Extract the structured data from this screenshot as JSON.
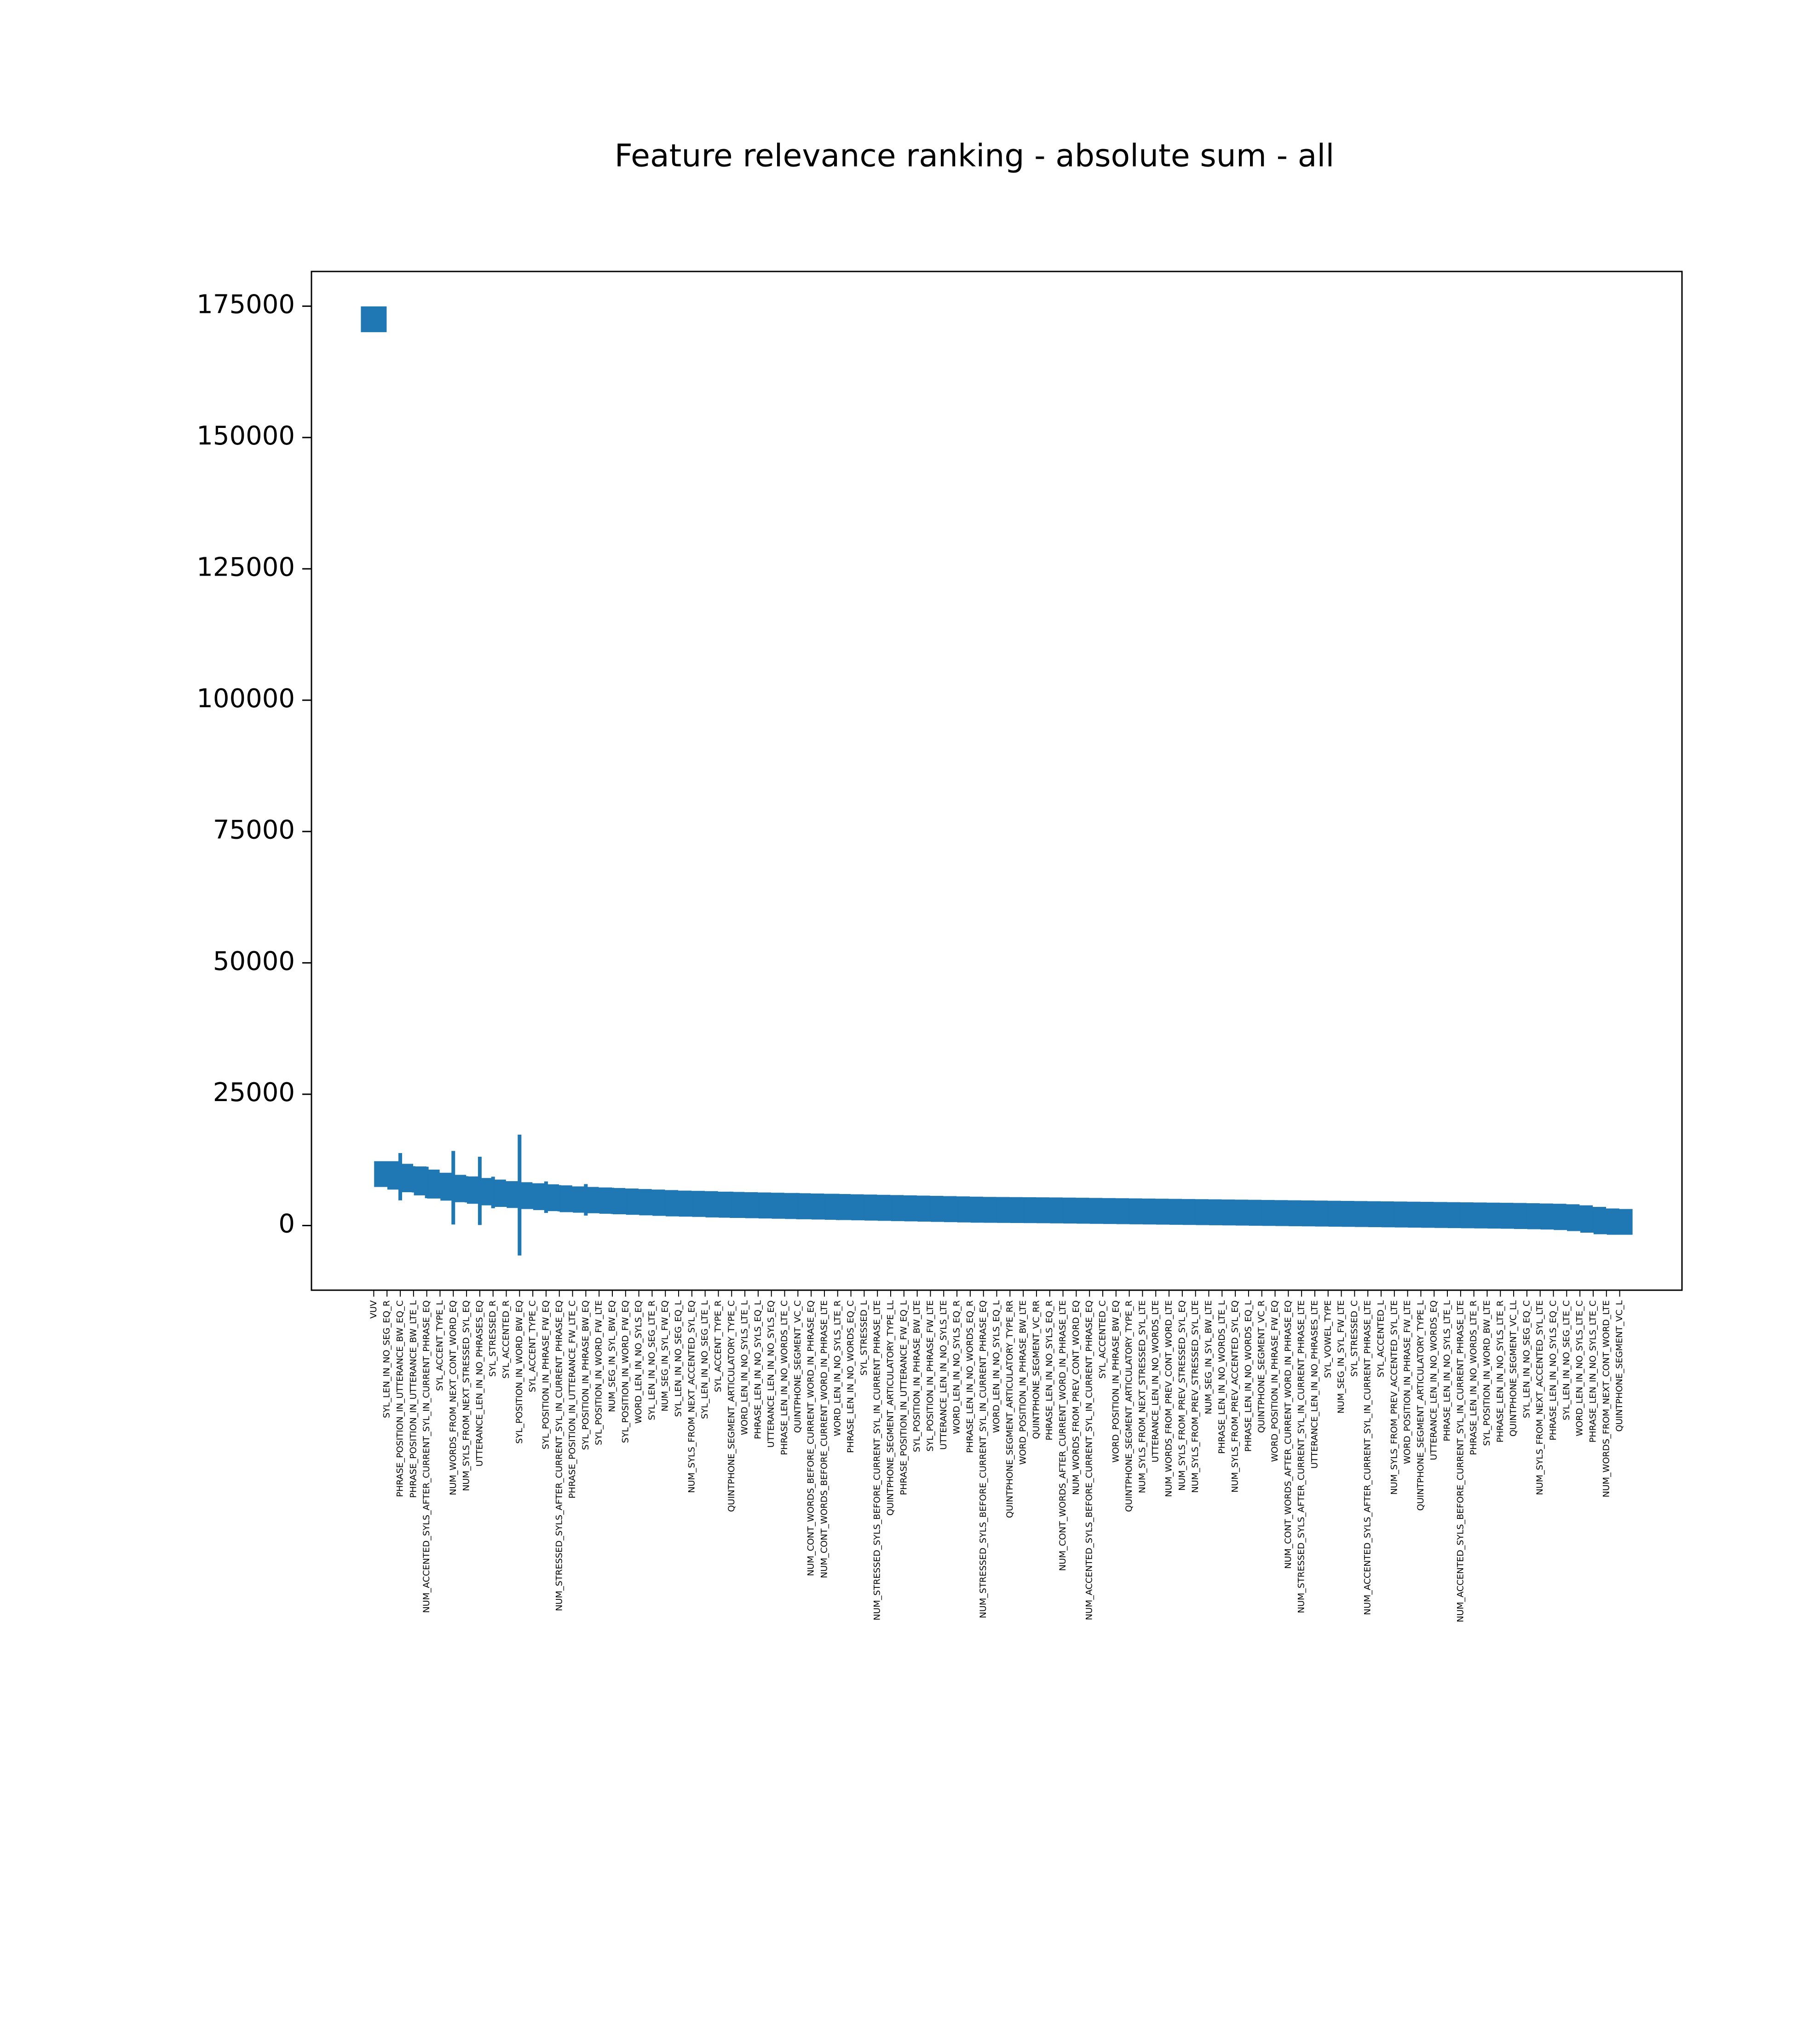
{
  "chart_data": {
    "type": "errorbar",
    "title": "Feature relevance ranking - absolute sum - all",
    "color": "#1f77b4",
    "ylim": [
      -12300,
      181600
    ],
    "yticks": [
      0,
      25000,
      50000,
      75000,
      100000,
      125000,
      150000,
      175000
    ],
    "categories": [
      "VUV",
      "SYL_LEN_IN_NO_SEG_EQ_R",
      "PHRASE_POSITION_IN_UTTERANCE_BW_EQ_C",
      "PHRASE_POSITION_IN_UTTERANCE_BW_LTE_L",
      "NUM_ACCENTED_SYLS_AFTER_CURRENT_SYL_IN_CURRENT_PHRASE_EQ",
      "SYL_ACCENT_TYPE_L",
      "NUM_WORDS_FROM_NEXT_CONT_WORD_EQ",
      "NUM_SYLS_FROM_NEXT_STRESSED_SYL_EQ",
      "UTTERANCE_LEN_IN_NO_PHRASES_EQ",
      "SYL_STRESSED_R",
      "SYL_ACCENTED_R",
      "SYL_POSITION_IN_WORD_BW_EQ",
      "SYL_ACCENT_TYPE_C",
      "SYL_POSITION_IN_PHRASE_FW_EQ",
      "NUM_STRESSED_SYLS_AFTER_CURRENT_SYL_IN_CURRENT_PHRASE_EQ",
      "PHRASE_POSITION_IN_UTTERANCE_FW_LTE_C",
      "SYL_POSITION_IN_PHRASE_BW_EQ",
      "SYL_POSITION_IN_WORD_FW_LTE",
      "NUM_SEG_IN_SYL_BW_EQ",
      "SYL_POSITION_IN_WORD_FW_EQ",
      "WORD_LEN_IN_NO_SYLS_EQ",
      "SYL_LEN_IN_NO_SEG_LTE_R",
      "NUM_SEG_IN_SYL_FW_EQ",
      "SYL_LEN_IN_NO_SEG_EQ_L",
      "NUM_SYLS_FROM_NEXT_ACCENTED_SYL_EQ",
      "SYL_LEN_IN_NO_SEG_LTE_L",
      "SYL_ACCENT_TYPE_R",
      "QUINTPHONE_SEGMENT_ARTICULATORY_TYPE_C",
      "WORD_LEN_IN_NO_SYLS_LTE_L",
      "PHRASE_LEN_IN_NO_SYLS_EQ_L",
      "UTTERANCE_LEN_IN_NO_SYLS_EQ",
      "PHRASE_LEN_IN_NO_WORDS_LTE_C",
      "QUINTPHONE_SEGMENT_VC_C",
      "NUM_CONT_WORDS_BEFORE_CURRENT_WORD_IN_PHRASE_EQ",
      "NUM_CONT_WORDS_BEFORE_CURRENT_WORD_IN_PHRASE_LTE",
      "WORD_LEN_IN_NO_SYLS_LTE_R",
      "PHRASE_LEN_IN_NO_WORDS_EQ_C",
      "SYL_STRESSED_L",
      "NUM_STRESSED_SYLS_BEFORE_CURRENT_SYL_IN_CURRENT_PHRASE_LTE",
      "QUINTPHONE_SEGMENT_ARTICULATORY_TYPE_LL",
      "PHRASE_POSITION_IN_UTTERANCE_FW_EQ_L",
      "SYL_POSITION_IN_PHRASE_BW_LTE",
      "SYL_POSITION_IN_PHRASE_FW_LTE",
      "UTTERANCE_LEN_IN_NO_SYLS_LTE",
      "WORD_LEN_IN_NO_SYLS_EQ_R",
      "PHRASE_LEN_IN_NO_WORDS_EQ_R",
      "NUM_STRESSED_SYLS_BEFORE_CURRENT_SYL_IN_CURRENT_PHRASE_EQ",
      "WORD_LEN_IN_NO_SYLS_EQ_L",
      "QUINTPHONE_SEGMENT_ARTICULATORY_TYPE_RR",
      "WORD_POSITION_IN_PHRASE_BW_LTE",
      "QUINTPHONE_SEGMENT_VC_RR",
      "PHRASE_LEN_IN_NO_SYLS_EQ_R",
      "NUM_CONT_WORDS_AFTER_CURRENT_WORD_IN_PHRASE_LTE",
      "NUM_WORDS_FROM_PREV_CONT_WORD_EQ",
      "NUM_ACCENTED_SYLS_BEFORE_CURRENT_SYL_IN_CURRENT_PHRASE_EQ",
      "SYL_ACCENTED_C",
      "WORD_POSITION_IN_PHRASE_BW_EQ",
      "QUINTPHONE_SEGMENT_ARTICULATORY_TYPE_R",
      "NUM_SYLS_FROM_NEXT_STRESSED_SYL_LTE",
      "UTTERANCE_LEN_IN_NO_WORDS_LTE",
      "NUM_WORDS_FROM_PREV_CONT_WORD_LTE",
      "NUM_SYLS_FROM_PREV_STRESSED_SYL_EQ",
      "NUM_SYLS_FROM_PREV_STRESSED_SYL_LTE",
      "NUM_SEG_IN_SYL_BW_LTE",
      "PHRASE_LEN_IN_NO_WORDS_LTE_L",
      "NUM_SYLS_FROM_PREV_ACCENTED_SYL_EQ",
      "PHRASE_LEN_IN_NO_WORDS_EQ_L",
      "QUINTPHONE_SEGMENT_VC_R",
      "WORD_POSITION_IN_PHRASE_FW_EQ",
      "NUM_CONT_WORDS_AFTER_CURRENT_WORD_IN_PHRASE_EQ",
      "NUM_STRESSED_SYLS_AFTER_CURRENT_SYL_IN_CURRENT_PHRASE_LTE",
      "UTTERANCE_LEN_IN_NO_PHRASES_LTE",
      "SYL_VOWEL_TYPE",
      "NUM_SEG_IN_SYL_FW_LTE",
      "SYL_STRESSED_C",
      "NUM_ACCENTED_SYLS_AFTER_CURRENT_SYL_IN_CURRENT_PHRASE_LTE",
      "SYL_ACCENTED_L",
      "NUM_SYLS_FROM_PREV_ACCENTED_SYL_LTE",
      "WORD_POSITION_IN_PHRASE_FW_LTE",
      "QUINTPHONE_SEGMENT_ARTICULATORY_TYPE_L",
      "UTTERANCE_LEN_IN_NO_WORDS_EQ",
      "PHRASE_LEN_IN_NO_SYLS_LTE_L",
      "NUM_ACCENTED_SYLS_BEFORE_CURRENT_SYL_IN_CURRENT_PHRASE_LTE",
      "PHRASE_LEN_IN_NO_WORDS_LTE_R",
      "SYL_POSITION_IN_WORD_BW_LTE",
      "PHRASE_LEN_IN_NO_SYLS_LTE_R",
      "QUINTPHONE_SEGMENT_VC_LL",
      "SYL_LEN_IN_NO_SEG_EQ_C",
      "NUM_SYLS_FROM_NEXT_ACCENTED_SYL_LTE",
      "PHRASE_LEN_IN_NO_SYLS_EQ_C",
      "SYL_LEN_IN_NO_SEG_LTE_C",
      "WORD_LEN_IN_NO_SYLS_LTE_C",
      "PHRASE_LEN_IN_NO_SYLS_LTE_C",
      "NUM_WORDS_FROM_NEXT_CONT_WORD_LTE",
      "QUINTPHONE_SEGMENT_VC_L"
    ],
    "values": [
      172500,
      9800,
      9300,
      8800,
      8200,
      7600,
      7200,
      6900,
      6600,
      6300,
      6000,
      5800,
      5600,
      5400,
      5200,
      5000,
      4900,
      4800,
      4700,
      4600,
      4500,
      4400,
      4300,
      4200,
      4150,
      4100,
      4000,
      3950,
      3900,
      3850,
      3800,
      3750,
      3700,
      3650,
      3600,
      3550,
      3500,
      3450,
      3400,
      3350,
      3300,
      3250,
      3200,
      3150,
      3100,
      3050,
      3000,
      2980,
      2960,
      2940,
      2920,
      2900,
      2870,
      2840,
      2810,
      2780,
      2750,
      2720,
      2690,
      2660,
      2630,
      2600,
      2570,
      2540,
      2510,
      2480,
      2450,
      2420,
      2390,
      2360,
      2330,
      2300,
      2270,
      2240,
      2210,
      2180,
      2150,
      2120,
      2090,
      2060,
      2030,
      2000,
      1970,
      1940,
      1910,
      1880,
      1850,
      1800,
      1750,
      1700,
      1600,
      1400,
      1100,
      800,
      700
    ],
    "errors": [
      0,
      2000,
      4500,
      2500,
      3000,
      2000,
      7000,
      2500,
      6500,
      3000,
      2000,
      11500,
      2000,
      3000,
      2500,
      1500,
      3000,
      1500,
      2500,
      1500,
      1000,
      2000,
      1000,
      1500,
      1000,
      1000,
      1000,
      2500,
      1000,
      800,
      700,
      700,
      2500,
      700,
      600,
      2500,
      600,
      500,
      500,
      500,
      500,
      500,
      500,
      500,
      500,
      500,
      500,
      500,
      500,
      500,
      500,
      500,
      500,
      500,
      500,
      500,
      800,
      500,
      500,
      500,
      500,
      500,
      500,
      500,
      500,
      500,
      500,
      500,
      500,
      500,
      500,
      500,
      500,
      500,
      500,
      500,
      500,
      500,
      500,
      500,
      500,
      500,
      500,
      500,
      500,
      500,
      500,
      500,
      500,
      500,
      500,
      500,
      500,
      500,
      500
    ]
  }
}
